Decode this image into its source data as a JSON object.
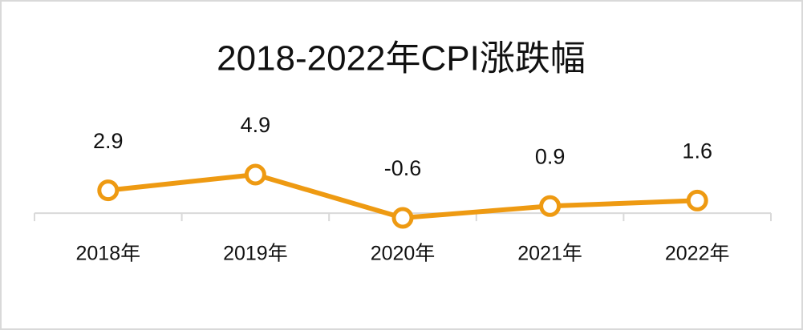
{
  "chart_data": {
    "type": "line",
    "title": "2018-2022年CPI涨跌幅",
    "categories": [
      "2018年",
      "2019年",
      "2020年",
      "2021年",
      "2022年"
    ],
    "values": [
      2.9,
      4.9,
      -0.6,
      0.9,
      1.6
    ],
    "color": "#ee9a12"
  }
}
